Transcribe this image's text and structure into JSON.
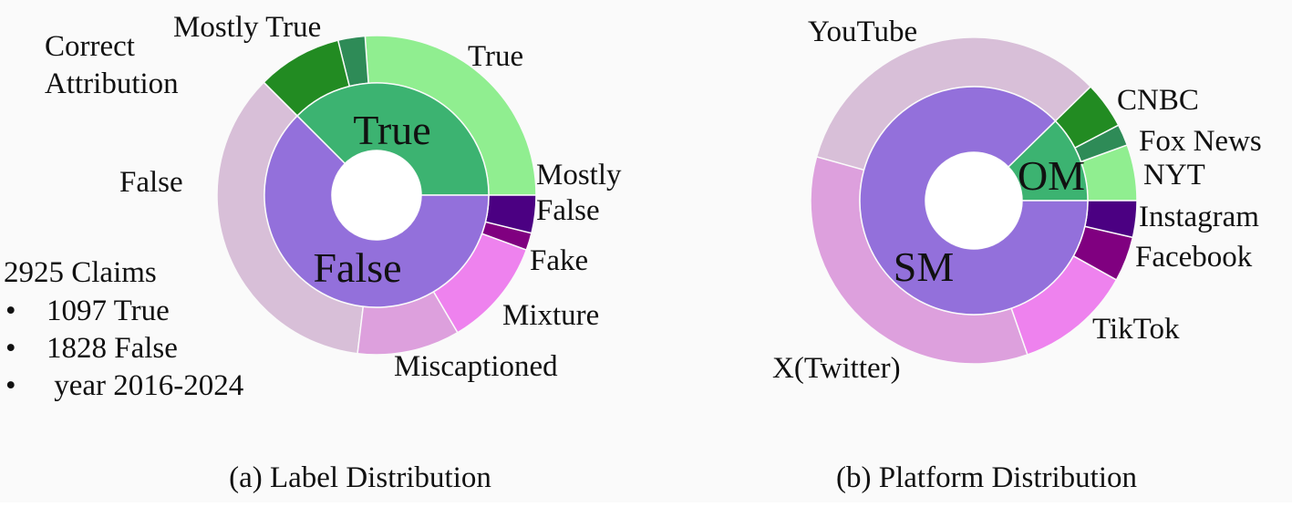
{
  "summary": {
    "total": "2925 Claims",
    "bullets": [
      "1097 True",
      "1828 False",
      " year 2016-2024"
    ]
  },
  "chart_data": [
    {
      "type": "sunburst",
      "caption": "(a) Label Distribution",
      "inner": [
        {
          "name": "True",
          "value": 1097,
          "color": "#3cb371"
        },
        {
          "name": "False",
          "value": 1828,
          "color": "#9370db"
        }
      ],
      "outer": [
        {
          "name": "True",
          "parent": "True",
          "value": 765,
          "color": "#90ee90"
        },
        {
          "name": "Mostly True",
          "parent": "True",
          "value": 80,
          "color": "#2e8b57"
        },
        {
          "name": "Correct Attribution",
          "parent": "True",
          "value": 252,
          "color": "#228b22"
        },
        {
          "name": "False",
          "parent": "False",
          "value": 1041,
          "color": "#d8bfd8"
        },
        {
          "name": "Miscaptioned",
          "parent": "False",
          "value": 304,
          "color": "#dda0dd"
        },
        {
          "name": "Mixture",
          "parent": "False",
          "value": 320,
          "color": "#ee82ee"
        },
        {
          "name": "Fake",
          "parent": "False",
          "value": 51,
          "color": "#800080"
        },
        {
          "name": "Mostly False",
          "parent": "False",
          "value": 112,
          "color": "#4b0082"
        }
      ]
    },
    {
      "type": "sunburst",
      "caption": "(b) Platform Distribution",
      "inner": [
        {
          "name": "OM",
          "value": 360,
          "color": "#3cb371"
        },
        {
          "name": "SM",
          "value": 2565,
          "color": "#9370db"
        }
      ],
      "outer": [
        {
          "name": "NYT",
          "parent": "OM",
          "value": 162,
          "color": "#90ee90"
        },
        {
          "name": "Fox News",
          "parent": "OM",
          "value": 62,
          "color": "#2e8b57"
        },
        {
          "name": "CNBC",
          "parent": "OM",
          "value": 136,
          "color": "#228b22"
        },
        {
          "name": "YouTube",
          "parent": "SM",
          "value": 976,
          "color": "#d8bfd8"
        },
        {
          "name": "X(Twitter)",
          "parent": "SM",
          "value": 1014,
          "color": "#dda0dd"
        },
        {
          "name": "TikTok",
          "parent": "SM",
          "value": 339,
          "color": "#ee82ee"
        },
        {
          "name": "Facebook",
          "parent": "SM",
          "value": 130,
          "color": "#800080"
        },
        {
          "name": "Instagram",
          "parent": "SM",
          "value": 106,
          "color": "#4b0082"
        }
      ]
    }
  ]
}
